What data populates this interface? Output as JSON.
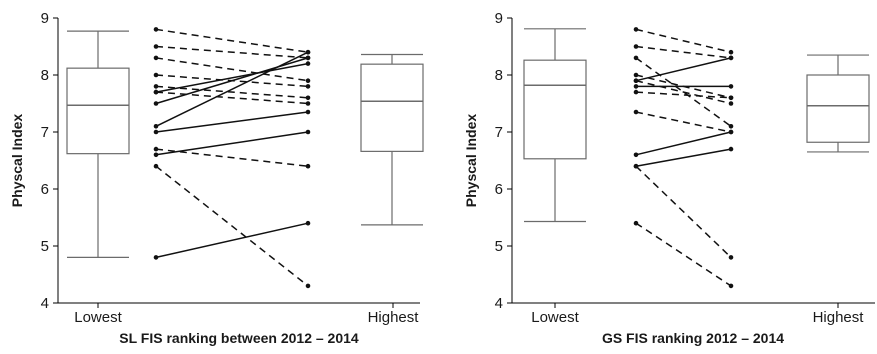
{
  "chart_data": [
    {
      "type": "box+paired-lines",
      "ylabel": "Physcal Index",
      "xlabel": "SL FIS ranking between 2012 – 2014",
      "categories": [
        "Lowest",
        "Highest"
      ],
      "ylim": [
        4,
        9
      ],
      "yticks": [
        4,
        5,
        6,
        7,
        8,
        9
      ],
      "boxes": [
        {
          "name": "Lowest",
          "min": 4.8,
          "q1": 6.62,
          "median": 7.47,
          "q3": 8.12,
          "max": 8.77
        },
        {
          "name": "Highest",
          "min": 5.37,
          "q1": 6.66,
          "median": 7.54,
          "q3": 8.19,
          "max": 8.36
        }
      ],
      "pairs": [
        {
          "from": 8.8,
          "to": 8.4,
          "style": "dashed"
        },
        {
          "from": 8.5,
          "to": 8.3,
          "style": "dashed"
        },
        {
          "from": 8.3,
          "to": 7.9,
          "style": "dashed"
        },
        {
          "from": 8.0,
          "to": 7.8,
          "style": "dashed"
        },
        {
          "from": 7.8,
          "to": 7.6,
          "style": "dashed"
        },
        {
          "from": 7.7,
          "to": 7.5,
          "style": "dashed"
        },
        {
          "from": 6.7,
          "to": 6.4,
          "style": "dashed"
        },
        {
          "from": 6.4,
          "to": 4.3,
          "style": "dashed"
        },
        {
          "from": 7.5,
          "to": 8.3,
          "style": "solid"
        },
        {
          "from": 7.7,
          "to": 8.2,
          "style": "solid"
        },
        {
          "from": 7.1,
          "to": 8.4,
          "style": "solid"
        },
        {
          "from": 7.0,
          "to": 7.35,
          "style": "solid"
        },
        {
          "from": 6.6,
          "to": 7.0,
          "style": "solid"
        },
        {
          "from": 4.8,
          "to": 5.4,
          "style": "solid"
        }
      ]
    },
    {
      "type": "box+paired-lines",
      "ylabel": "Physcal Index",
      "xlabel": "GS FIS ranking 2012 – 2014",
      "categories": [
        "Lowest",
        "Highest"
      ],
      "ylim": [
        4,
        9
      ],
      "yticks": [
        4,
        5,
        6,
        7,
        8,
        9
      ],
      "boxes": [
        {
          "name": "Lowest",
          "min": 5.43,
          "q1": 6.53,
          "median": 7.82,
          "q3": 8.26,
          "max": 8.81
        },
        {
          "name": "Highest",
          "min": 6.65,
          "q1": 6.82,
          "median": 7.46,
          "q3": 8.0,
          "max": 8.35
        }
      ],
      "pairs": [
        {
          "from": 8.8,
          "to": 8.4,
          "style": "dashed"
        },
        {
          "from": 8.5,
          "to": 8.3,
          "style": "dashed"
        },
        {
          "from": 8.3,
          "to": 7.1,
          "style": "dashed"
        },
        {
          "from": 8.0,
          "to": 7.6,
          "style": "dashed"
        },
        {
          "from": 7.9,
          "to": 7.5,
          "style": "dashed"
        },
        {
          "from": 7.7,
          "to": 7.6,
          "style": "dashed"
        },
        {
          "from": 7.35,
          "to": 7.0,
          "style": "dashed"
        },
        {
          "from": 6.4,
          "to": 4.8,
          "style": "dashed"
        },
        {
          "from": 5.4,
          "to": 4.3,
          "style": "dashed"
        },
        {
          "from": 7.9,
          "to": 8.3,
          "style": "solid"
        },
        {
          "from": 7.8,
          "to": 7.8,
          "style": "solid"
        },
        {
          "from": 6.6,
          "to": 7.0,
          "style": "solid"
        },
        {
          "from": 6.4,
          "to": 6.7,
          "style": "solid"
        }
      ]
    }
  ]
}
